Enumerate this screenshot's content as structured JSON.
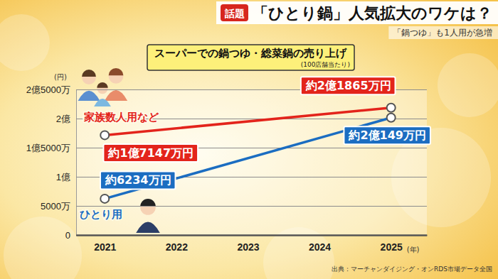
{
  "header": {
    "badge": "話題",
    "title": "「ひとり鍋」人気拡大のワケは？",
    "subtitle": "「鍋つゆ」も1人用が急増"
  },
  "chart_data": {
    "type": "line",
    "title": "スーパーでの鍋つゆ・総菜鍋の売り上げ",
    "subtitle": "(100店舗当たり)",
    "ylabel": "(円)",
    "xlabel": "(年)",
    "source": "出典：マーチャンダイジング・オンRDS市場データ全国",
    "x": [
      2021,
      2025
    ],
    "xlim": [
      2020.6,
      2025.5
    ],
    "xticks": [
      2021,
      2022,
      2023,
      2024,
      2025
    ],
    "ylim": [
      0,
      250000000
    ],
    "yticks": [
      0,
      {
        "value": 50000000,
        "label": "5000万"
      },
      {
        "value": 100000000,
        "label": "1億"
      },
      {
        "value": 150000000,
        "label": "1億5000万"
      },
      {
        "value": 200000000,
        "label": "2億"
      },
      {
        "value": 250000000,
        "label": "2億5000万"
      }
    ],
    "grid": true,
    "data_labels": true,
    "marker": "circle",
    "series": [
      {
        "name": "家族数人用など",
        "color": "#e3241b",
        "values": [
          171470000,
          218650000
        ],
        "value_labels": [
          "約1億7147万円",
          "約2億1865万円"
        ]
      },
      {
        "name": "ひとり用",
        "color": "#1b6dc1",
        "values": [
          62340000,
          201490000
        ],
        "value_labels": [
          "約6234万円",
          "約2億149万円"
        ]
      }
    ]
  }
}
